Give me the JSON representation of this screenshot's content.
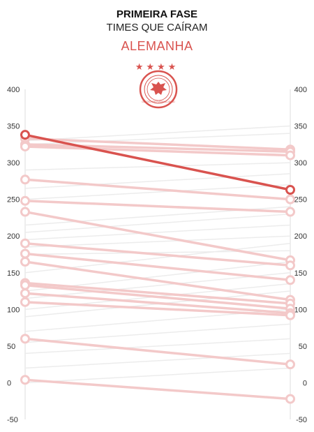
{
  "header": {
    "title": "PRIMEIRA FASE",
    "subtitle": "TIMES QUE CAÍRAM",
    "team": "ALEMANHA",
    "stars": "★★★★"
  },
  "crest": {
    "label": "DEUTSCHER FUSSBALL-BUND"
  },
  "colors": {
    "highlight": "#d9534f",
    "faded": "#f3c9c9",
    "background_line": "#ececec",
    "axis": "#dddddd"
  },
  "chart_data": {
    "type": "slope",
    "ylim": [
      -50,
      400
    ],
    "yticks": [
      -50,
      0,
      50,
      100,
      150,
      200,
      250,
      300,
      350,
      400
    ],
    "highlight": {
      "start": 338,
      "end": 263
    },
    "series": [
      {
        "start": 333,
        "end": 318
      },
      {
        "start": 325,
        "end": 315
      },
      {
        "start": 322,
        "end": 310
      },
      {
        "start": 277,
        "end": 250
      },
      {
        "start": 248,
        "end": 233
      },
      {
        "start": 233,
        "end": 167
      },
      {
        "start": 190,
        "end": 160
      },
      {
        "start": 176,
        "end": 140
      },
      {
        "start": 165,
        "end": 113
      },
      {
        "start": 136,
        "end": 108
      },
      {
        "start": 133,
        "end": 101
      },
      {
        "start": 122,
        "end": 95
      },
      {
        "start": 110,
        "end": 92
      },
      {
        "start": 60,
        "end": 25
      },
      {
        "start": 4,
        "end": -22
      }
    ],
    "background_series": [
      {
        "start": 330,
        "end": 350
      },
      {
        "start": 325,
        "end": 340
      },
      {
        "start": 290,
        "end": 300
      },
      {
        "start": 265,
        "end": 285
      },
      {
        "start": 250,
        "end": 270
      },
      {
        "start": 215,
        "end": 240
      },
      {
        "start": 205,
        "end": 230
      },
      {
        "start": 195,
        "end": 215
      },
      {
        "start": 185,
        "end": 200
      },
      {
        "start": 175,
        "end": 180
      },
      {
        "start": 150,
        "end": 190
      },
      {
        "start": 125,
        "end": 165
      },
      {
        "start": 115,
        "end": 150
      },
      {
        "start": 100,
        "end": 135
      },
      {
        "start": 90,
        "end": 125
      },
      {
        "start": 70,
        "end": 100
      },
      {
        "start": 55,
        "end": 80
      },
      {
        "start": 40,
        "end": 60
      },
      {
        "start": 20,
        "end": 40
      },
      {
        "start": 0,
        "end": 20
      }
    ]
  }
}
